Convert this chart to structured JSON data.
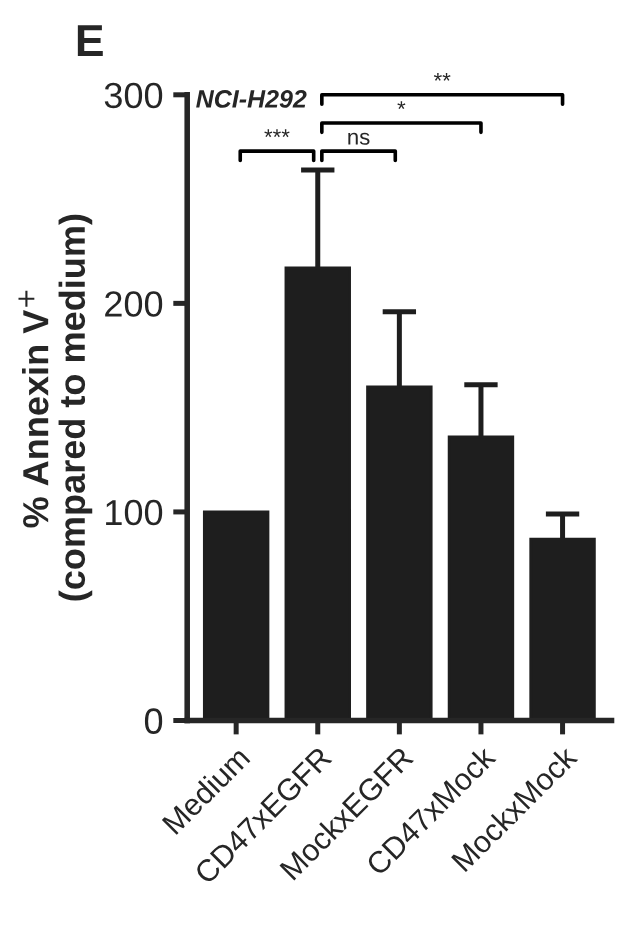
{
  "chart_data": {
    "type": "bar",
    "title": "E",
    "ylabel": "% Annexin V$^{+}$\n(compared to medium)",
    "categories": [
      "Medium",
      "CD47xEGFR",
      "MockxEGFR",
      "CD47xMock",
      "MockxMock"
    ],
    "values": [
      100,
      217,
      160,
      136,
      87
    ],
    "errors": [
      null,
      47,
      36,
      25,
      12
    ],
    "color": "#1e1e1e",
    "ylim": [
      0,
      300
    ],
    "yticks": [
      0,
      100,
      200,
      300
    ],
    "grid": false,
    "legend": false,
    "annotations": [
      "NCI-H292",
      "***",
      "ns",
      "*",
      "**"
    ]
  }
}
